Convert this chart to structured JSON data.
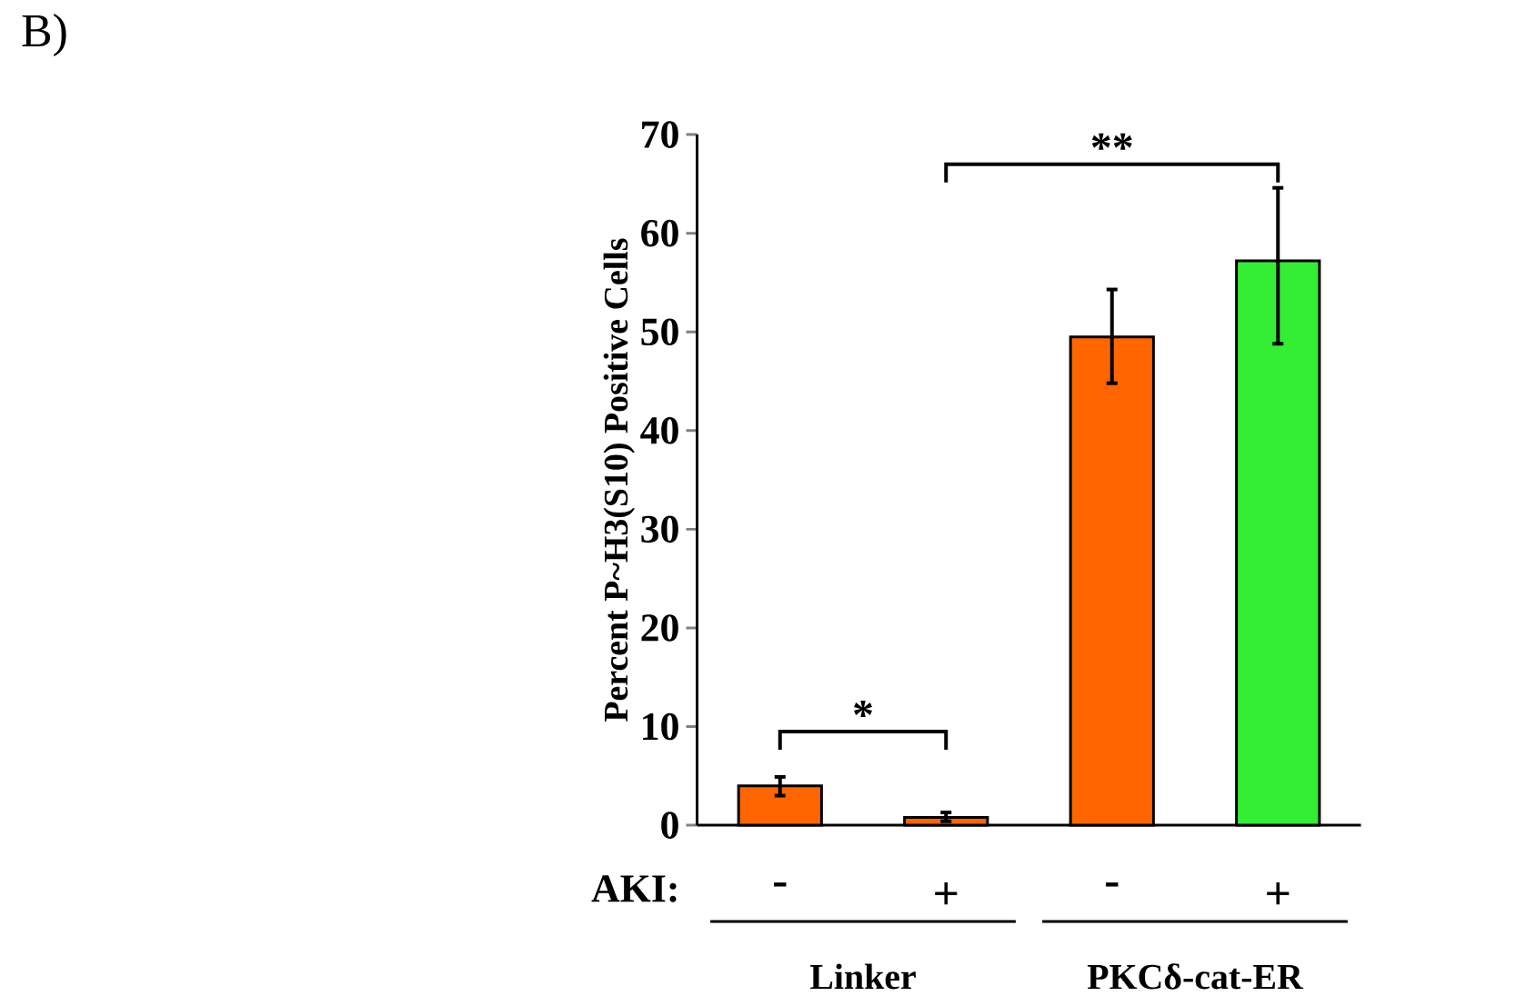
{
  "chart_data": {
    "type": "bar",
    "ylabel": "Percent P~H3(S10) Positive Cells",
    "categories": [
      "-",
      "+",
      "-",
      "+"
    ],
    "values": [
      4,
      0.8,
      49.5,
      57.2
    ],
    "colors": [
      "#ff6600",
      "#ff6600",
      "#ff6600",
      "#33ee33"
    ],
    "errors": [
      [
        3,
        4.9
      ],
      [
        0.4,
        1.3
      ],
      [
        44.8,
        54.3
      ],
      [
        48.8,
        64.6
      ]
    ],
    "ylim": [
      0,
      70
    ],
    "yticks": [
      0,
      10,
      20,
      30,
      40,
      50,
      60,
      70
    ],
    "annotations": [
      "B)",
      "AKI:",
      "Linker",
      "PKCδ-cat-ER",
      "*",
      "**"
    ]
  }
}
